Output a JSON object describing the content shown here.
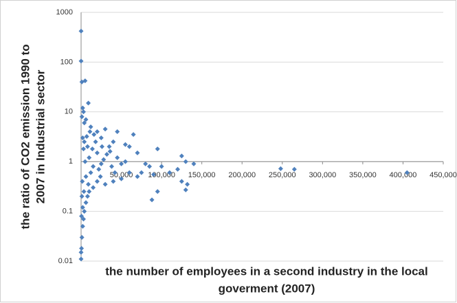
{
  "chart_data": {
    "type": "scatter",
    "ylabel": [
      "the ratio of CO2 emission 1990 to",
      "2007 in Industrial sector"
    ],
    "xlabel": [
      "the number of employees in a second industry in the local",
      "goverment (2007)"
    ],
    "ylog": true,
    "grid": true,
    "color": "#4f81bd",
    "ylim": [
      0.01,
      1000
    ],
    "yticks": [
      0.01,
      0.1,
      1,
      10,
      100,
      1000
    ],
    "xlim": [
      0,
      450000
    ],
    "xticks": [
      {
        "value": 50000,
        "label": "50,000"
      },
      {
        "value": 100000,
        "label": "100,000"
      },
      {
        "value": 150000,
        "label": "150,000"
      },
      {
        "value": 200000,
        "label": "200,000"
      },
      {
        "value": 250000,
        "label": "250,000"
      },
      {
        "value": 300000,
        "label": "300,000"
      },
      {
        "value": 350000,
        "label": "350,000"
      },
      {
        "value": 400000,
        "label": "400,000"
      },
      {
        "value": 450000,
        "label": "450,000"
      }
    ],
    "x": [
      0,
      0,
      1000,
      5000,
      9000,
      2000,
      3000,
      1000,
      6000,
      4000,
      12000,
      20000,
      30000,
      45000,
      65000,
      25000,
      40000,
      55000,
      35000,
      60000,
      70000,
      95000,
      125000,
      140000,
      130000,
      120000,
      100000,
      85000,
      80000,
      75000,
      90000,
      110000,
      125000,
      132000,
      130000,
      88000,
      95000,
      70000,
      60000,
      50000,
      40000,
      30000,
      248000,
      265000,
      405000,
      0,
      0,
      500,
      1000,
      2000,
      3000,
      500,
      4000,
      6000,
      8000,
      10000,
      15000,
      20000,
      2000,
      1000,
      5000,
      10000,
      15000,
      20000,
      25000,
      8000,
      12000,
      18000,
      3000,
      6000,
      22000,
      28000,
      32000,
      38000,
      45000,
      42000,
      50000,
      55000,
      2000,
      4000,
      7000,
      1500,
      9000,
      14000,
      16000,
      26000,
      11000,
      3500,
      24000,
      36000
    ],
    "y": [
      420,
      105,
      40,
      42,
      15,
      12,
      10,
      8,
      7,
      6,
      5,
      4,
      4.5,
      4,
      3.5,
      3,
      2.5,
      2.2,
      2,
      2,
      1.5,
      1.8,
      1.3,
      0.9,
      1,
      0.7,
      0.8,
      0.8,
      0.9,
      0.6,
      0.55,
      0.6,
      0.4,
      0.35,
      0.27,
      0.17,
      0.25,
      0.5,
      0.6,
      0.45,
      0.4,
      0.35,
      0.72,
      0.7,
      0.6,
      0.011,
      0.015,
      0.018,
      0.03,
      0.05,
      0.07,
      0.08,
      0.1,
      0.15,
      0.2,
      0.25,
      0.3,
      0.4,
      0.12,
      0.2,
      1,
      1.2,
      0.8,
      1.5,
      0.9,
      2,
      0.6,
      2.5,
      1.8,
      0.5,
      0.7,
      1.1,
      1.4,
      0.8,
      1.2,
      0.6,
      0.9,
      1.0,
      3,
      2.5,
      3.2,
      0.4,
      0.35,
      1.8,
      3.5,
      2,
      4,
      0.25,
      0.5,
      1.6
    ]
  }
}
